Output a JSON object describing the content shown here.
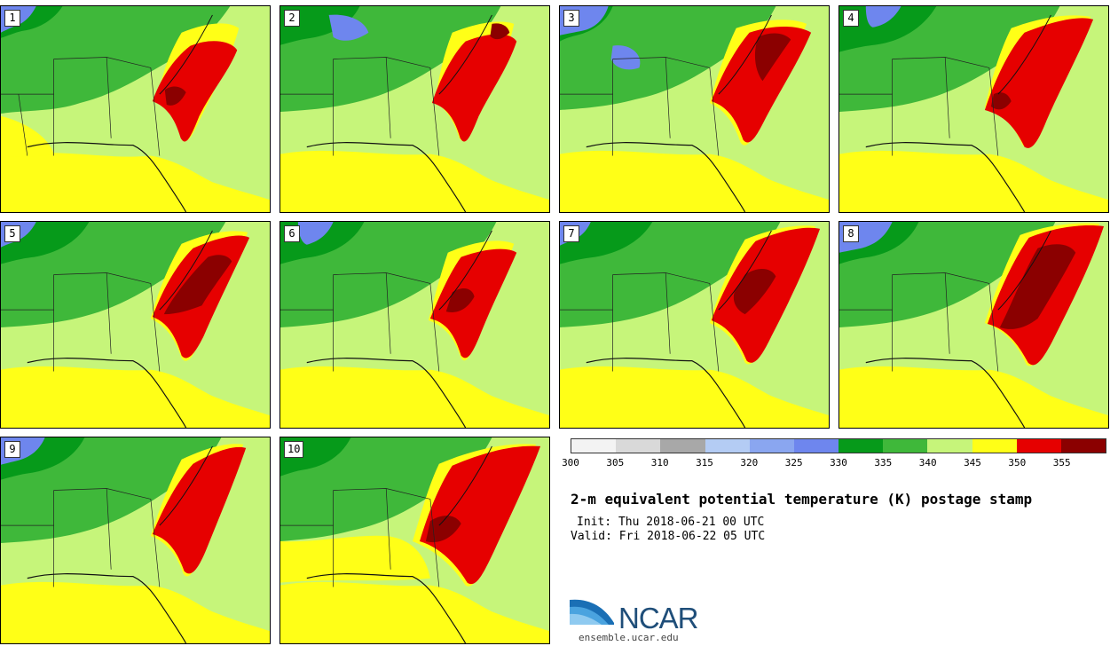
{
  "panels": [
    {
      "label": "1"
    },
    {
      "label": "2"
    },
    {
      "label": "3"
    },
    {
      "label": "4"
    },
    {
      "label": "5"
    },
    {
      "label": "6"
    },
    {
      "label": "7"
    },
    {
      "label": "8"
    },
    {
      "label": "9"
    },
    {
      "label": "10"
    }
  ],
  "legend": {
    "colors": [
      "#f3f3f3",
      "#d9d9d9",
      "#a8a8a8",
      "#b4ccf4",
      "#8aa6f0",
      "#6e86ee",
      "#069a1a",
      "#3fb83a",
      "#c6f57a",
      "#ffff17",
      "#e60000",
      "#8b0000"
    ],
    "ticks": [
      "300",
      "305",
      "310",
      "315",
      "320",
      "325",
      "330",
      "335",
      "340",
      "345",
      "350",
      "355"
    ]
  },
  "title": "2-m equivalent potential temperature (K) postage stamp",
  "init": "Init: Thu 2018-06-21 00 UTC",
  "valid": "Valid: Fri 2018-06-22 05 UTC",
  "logo": {
    "name": "NCAR",
    "url": "ensemble.ucar.edu"
  }
}
